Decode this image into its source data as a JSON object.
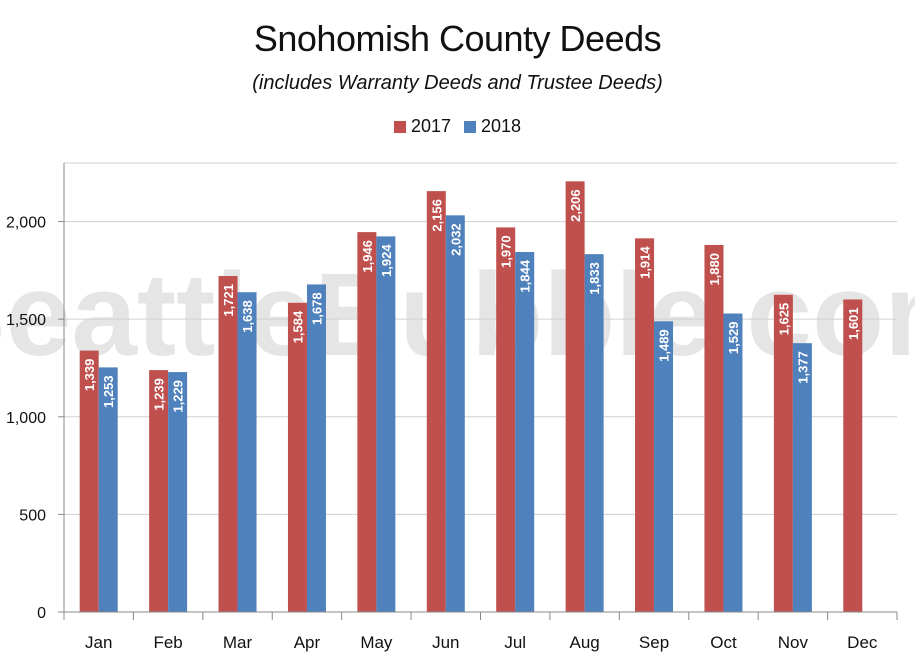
{
  "chart_data": {
    "type": "bar",
    "title": "Snohomish County Deeds",
    "subtitle": "(includes Warranty Deeds and Trustee Deeds)",
    "watermark": "SeattleBubble.com",
    "categories": [
      "Jan",
      "Feb",
      "Mar",
      "Apr",
      "May",
      "Jun",
      "Jul",
      "Aug",
      "Sep",
      "Oct",
      "Nov",
      "Dec"
    ],
    "series": [
      {
        "name": "2017",
        "color": "#c0504d",
        "values": [
          1339,
          1239,
          1721,
          1584,
          1946,
          2156,
          1970,
          2206,
          1914,
          1880,
          1625,
          1601
        ],
        "labels": [
          "1,339",
          "1,239",
          "1,721",
          "1,584",
          "1,946",
          "2,156",
          "1,970",
          "2,206",
          "1,914",
          "1,880",
          "1,625",
          "1,601"
        ]
      },
      {
        "name": "2018",
        "color": "#4f81bd",
        "values": [
          1253,
          1229,
          1638,
          1678,
          1924,
          2032,
          1844,
          1833,
          1489,
          1529,
          1377,
          null
        ],
        "labels": [
          "1,253",
          "1,229",
          "1,638",
          "1,678",
          "1,924",
          "2,032",
          "1,844",
          "1,833",
          "1,489",
          "1,529",
          "1,377",
          ""
        ]
      }
    ],
    "yticks": [
      0,
      500,
      1000,
      1500,
      2000
    ],
    "ytick_labels": [
      "0",
      "500",
      "1,000",
      "1,500",
      "2,000"
    ],
    "ylim": [
      0,
      2300
    ],
    "xlabel": "",
    "ylabel": "",
    "grid": true,
    "legend_position": "top-center"
  }
}
